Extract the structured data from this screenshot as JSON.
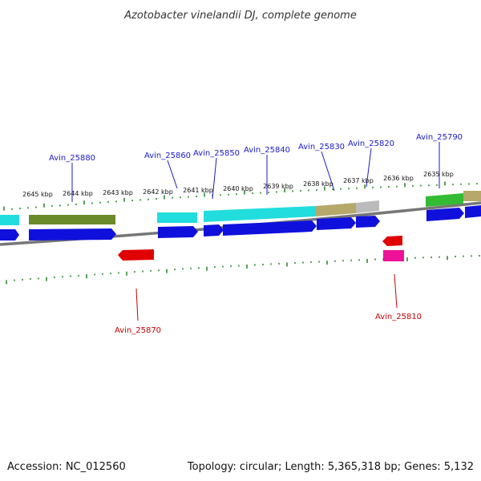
{
  "title": "Azotobacter vinelandii DJ, complete genome",
  "accession": "Accession: NC_012560",
  "summary": "Topology: circular; Length: 5,365,318 bp; Genes: 5,132",
  "scale_labels": [
    "2645 kbp",
    "2644 kbp",
    "2643 kbp",
    "2642 kbp",
    "2641 kbp",
    "2640 kbp",
    "2639 kbp",
    "2638 kbp",
    "2637 kbp",
    "2636 kbp",
    "2635 kbp"
  ],
  "gene_labels_top": [
    "Avin_25880",
    "Avin_25860",
    "Avin_25850",
    "Avin_25840",
    "Avin_25830",
    "Avin_25820",
    "Avin_25790"
  ],
  "gene_labels_bottom": [
    "Avin_25870",
    "Avin_25810"
  ],
  "colors": {
    "forward_gene": "#1010dd",
    "reverse_gene": "#e00000",
    "top_label": "#1a1acc",
    "bottom_label": "#cc0000",
    "tick": "#2e8b2e",
    "backbone": "#777777",
    "cyan_feature": "#22dddd",
    "olive_feature": "#6b8a2a",
    "khaki_feature": "#b5a86a",
    "gray_feature": "#bbbbbb",
    "green_feature": "#33bb33",
    "magenta_feature": "#ee1199"
  }
}
